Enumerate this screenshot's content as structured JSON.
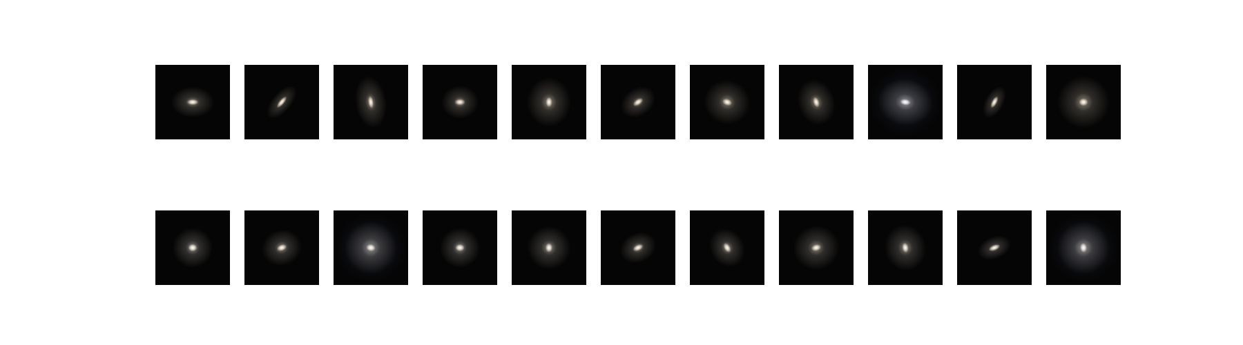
{
  "figure": {
    "rows": [
      {
        "panels": [
          {
            "subject": "galaxy",
            "elongation": 2.0,
            "angle_deg": 0,
            "halo": 0.7,
            "color": "#f3e6d3",
            "blue_halo": false
          },
          {
            "subject": "galaxy",
            "elongation": 3.0,
            "angle_deg": -50,
            "halo": 0.6,
            "color": "#efe0ca",
            "blue_halo": false
          },
          {
            "subject": "galaxy",
            "elongation": 2.4,
            "angle_deg": 82,
            "halo": 1.0,
            "color": "#f5e7d1",
            "blue_halo": false
          },
          {
            "subject": "galaxy",
            "elongation": 1.6,
            "angle_deg": 0,
            "halo": 0.5,
            "color": "#f0e1cc",
            "blue_halo": false
          },
          {
            "subject": "galaxy",
            "elongation": 1.6,
            "angle_deg": 90,
            "halo": 0.9,
            "color": "#f6e8d4",
            "blue_halo": false
          },
          {
            "subject": "galaxy",
            "elongation": 1.9,
            "angle_deg": -35,
            "halo": 0.5,
            "color": "#efe1cd",
            "blue_halo": false
          },
          {
            "subject": "galaxy",
            "elongation": 1.5,
            "angle_deg": 20,
            "halo": 0.8,
            "color": "#f3e5d0",
            "blue_halo": false
          },
          {
            "subject": "galaxy",
            "elongation": 1.8,
            "angle_deg": 72,
            "halo": 0.8,
            "color": "#f2e3ce",
            "blue_halo": false
          },
          {
            "subject": "galaxy",
            "elongation": 1.7,
            "angle_deg": 8,
            "halo": 1.1,
            "color": "#f4f2f5",
            "blue_halo": true
          },
          {
            "subject": "galaxy",
            "elongation": 2.6,
            "angle_deg": -62,
            "halo": 0.4,
            "color": "#ede0cc",
            "blue_halo": false
          },
          {
            "subject": "galaxy",
            "elongation": 1.2,
            "angle_deg": 0,
            "halo": 1.0,
            "color": "#f7e9d4",
            "blue_halo": false
          }
        ]
      },
      {
        "panels": [
          {
            "subject": "galaxy",
            "elongation": 1.2,
            "angle_deg": 0,
            "halo": 0.6,
            "color": "#f5eee2",
            "blue_halo": false
          },
          {
            "subject": "galaxy",
            "elongation": 1.6,
            "angle_deg": -20,
            "halo": 0.6,
            "color": "#f3e7d6",
            "blue_halo": false
          },
          {
            "subject": "galaxy",
            "elongation": 1.3,
            "angle_deg": 10,
            "halo": 1.0,
            "color": "#f5efe6",
            "blue_halo": true
          },
          {
            "subject": "galaxy",
            "elongation": 1.3,
            "angle_deg": 0,
            "halo": 0.6,
            "color": "#f4ece0",
            "blue_halo": false
          },
          {
            "subject": "galaxy",
            "elongation": 1.3,
            "angle_deg": 90,
            "halo": 0.7,
            "color": "#f4ebdd",
            "blue_halo": false
          },
          {
            "subject": "galaxy",
            "elongation": 1.8,
            "angle_deg": -25,
            "halo": 0.5,
            "color": "#f1e6d5",
            "blue_halo": false
          },
          {
            "subject": "galaxy",
            "elongation": 1.7,
            "angle_deg": 60,
            "halo": 0.6,
            "color": "#f2e6d5",
            "blue_halo": false
          },
          {
            "subject": "galaxy",
            "elongation": 1.5,
            "angle_deg": -15,
            "halo": 0.8,
            "color": "#f3e8d8",
            "blue_halo": false
          },
          {
            "subject": "galaxy",
            "elongation": 1.6,
            "angle_deg": 80,
            "halo": 0.8,
            "color": "#f3e8d9",
            "blue_halo": false
          },
          {
            "subject": "galaxy",
            "elongation": 2.2,
            "angle_deg": -22,
            "halo": 0.4,
            "color": "#efe5d6",
            "blue_halo": false
          },
          {
            "subject": "galaxy",
            "elongation": 1.4,
            "angle_deg": 85,
            "halo": 1.0,
            "color": "#f6f0e8",
            "blue_halo": true
          }
        ]
      }
    ]
  }
}
